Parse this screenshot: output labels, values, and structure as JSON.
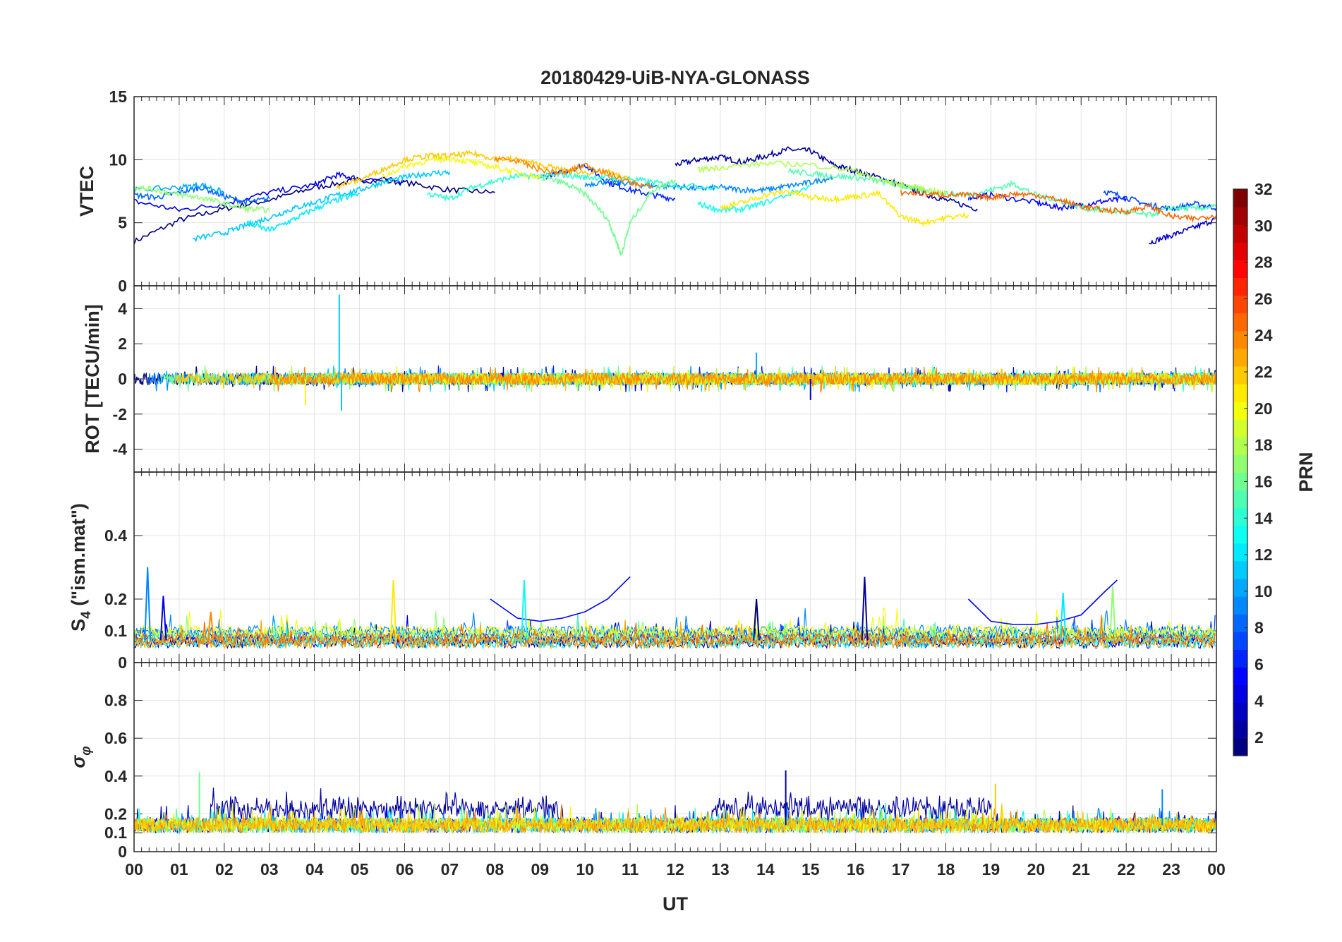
{
  "chart_data": {
    "type": "line",
    "title": "20180429-UiB-NYA-GLONASS",
    "xlabel": "UT",
    "x_ticks": [
      "00",
      "01",
      "02",
      "03",
      "04",
      "05",
      "06",
      "07",
      "08",
      "09",
      "10",
      "11",
      "12",
      "13",
      "14",
      "15",
      "16",
      "17",
      "18",
      "19",
      "20",
      "21",
      "22",
      "23",
      "00"
    ],
    "xlim": [
      0,
      24
    ],
    "grid": true,
    "colorbar": {
      "label": "PRN",
      "colormap": "jet",
      "range": [
        1,
        32
      ],
      "ticks": [
        2,
        4,
        6,
        8,
        10,
        12,
        14,
        16,
        18,
        20,
        22,
        24,
        26,
        28,
        30,
        32
      ]
    },
    "panels": [
      {
        "id": "vtec",
        "ylabel": "VTEC",
        "ylim": [
          0,
          15
        ],
        "yticks": [
          0,
          5,
          10,
          15
        ],
        "series": [
          {
            "prn": 1,
            "x": [
              0,
              1,
              2,
              3,
              4,
              5,
              6,
              7,
              8
            ],
            "y": [
              3.5,
              5.2,
              6.1,
              6.8,
              7.8,
              8.4,
              8.2,
              7.6,
              7.4
            ]
          },
          {
            "prn": 2,
            "x": [
              12,
              12.5,
              13,
              13.5,
              14,
              14.5,
              15,
              15.5,
              16,
              16.5,
              17,
              17.5,
              18,
              18.7
            ],
            "y": [
              9.6,
              10.0,
              10.2,
              9.8,
              10.3,
              10.8,
              10.7,
              9.6,
              9.1,
              8.6,
              8.0,
              7.3,
              6.8,
              6.1
            ]
          },
          {
            "prn": 3,
            "x": [
              22.5,
              23,
              23.5,
              24
            ],
            "y": [
              3.4,
              4.0,
              4.6,
              5.3
            ]
          },
          {
            "prn": 4,
            "x": [
              0,
              1,
              2,
              3,
              4,
              4.5,
              5,
              6
            ],
            "y": [
              6.7,
              6.0,
              6.5,
              7.4,
              8.0,
              8.8,
              8.5,
              8.3
            ]
          },
          {
            "prn": 5,
            "x": [
              18.5,
              19,
              20,
              20.5,
              21,
              21.5,
              22
            ],
            "y": [
              7.0,
              7.2,
              6.6,
              6.2,
              6.4,
              6.7,
              6.9
            ]
          },
          {
            "prn": 6,
            "x": [
              9,
              9.5,
              10,
              10.5,
              11,
              11.5,
              12
            ],
            "y": [
              8.6,
              9.0,
              9.6,
              8.2,
              7.6,
              7.2,
              6.9
            ]
          },
          {
            "prn": 7,
            "x": [
              21.5,
              22,
              22.5,
              23,
              23.5,
              24
            ],
            "y": [
              7.5,
              7.0,
              6.4,
              6.1,
              6.5,
              6.2
            ]
          },
          {
            "prn": 8,
            "x": [
              0,
              0.5,
              1,
              1.5,
              2,
              2.5,
              3
            ],
            "y": [
              7.2,
              7.0,
              7.4,
              7.8,
              7.1,
              6.6,
              6.9
            ]
          },
          {
            "prn": 9,
            "x": [
              10,
              10.5,
              11,
              11.5,
              12,
              12.5,
              13,
              13.5,
              14,
              14.5,
              15,
              15.5
            ],
            "y": [
              8.0,
              8.3,
              8.1,
              7.9,
              7.9,
              7.7,
              7.8,
              7.6,
              7.6,
              7.9,
              8.2,
              8.6
            ]
          },
          {
            "prn": 10,
            "x": [
              0,
              1,
              1.5,
              2
            ],
            "y": [
              7.6,
              7.8,
              8.0,
              7.4
            ]
          },
          {
            "prn": 11,
            "x": [
              1.3,
              2,
              2.5,
              3,
              3.5,
              4,
              4.5,
              5,
              5.5,
              6,
              6.5,
              7
            ],
            "y": [
              3.7,
              4.2,
              4.8,
              5.4,
              6.1,
              6.6,
              7.2,
              7.6,
              8.2,
              8.6,
              8.9,
              9.0
            ]
          },
          {
            "prn": 12,
            "x": [
              2.5,
              3,
              3.5,
              4,
              4.5,
              5
            ],
            "y": [
              5.0,
              4.4,
              5.2,
              6.1,
              6.8,
              7.3
            ]
          },
          {
            "prn": 13,
            "x": [
              12.5,
              13,
              13.5,
              14,
              15
            ],
            "y": [
              6.5,
              6.0,
              6.1,
              6.6,
              7.9
            ]
          },
          {
            "prn": 14,
            "x": [
              6.5,
              7,
              7.5,
              8,
              8.5,
              9,
              9.5,
              10,
              10.5,
              11,
              11.5,
              12,
              13
            ],
            "y": [
              7.3,
              6.9,
              7.8,
              8.3,
              8.7,
              8.7,
              8.8,
              8.6,
              8.6,
              8.5,
              8.2,
              8.0,
              7.8
            ]
          },
          {
            "prn": 15,
            "x": [
              14.5,
              15,
              15.5,
              16,
              16.5,
              17,
              17.5,
              18,
              18.5,
              19,
              19.5,
              20,
              20.5,
              21,
              21.5,
              22,
              22.5,
              23,
              23.5,
              24
            ],
            "y": [
              9.1,
              8.9,
              8.7,
              8.6,
              8.3,
              8.0,
              7.5,
              7.3,
              7.2,
              7.6,
              8.1,
              7.2,
              6.8,
              6.2,
              6.0,
              5.8,
              5.6,
              6.2,
              6.1,
              6.3
            ]
          },
          {
            "prn": 16,
            "x": [
              9,
              9.5,
              10,
              10.5,
              10.7,
              10.8,
              11,
              11.5,
              12
            ],
            "y": [
              8.6,
              8.2,
              7.3,
              5.3,
              3.5,
              2.4,
              5.0,
              7.6,
              8.4
            ]
          },
          {
            "prn": 17,
            "x": [
              0,
              0.5,
              1,
              1.5,
              2,
              2.5,
              3
            ],
            "y": [
              7.8,
              7.6,
              7.2,
              7.0,
              6.5,
              6.1,
              6.0
            ]
          },
          {
            "prn": 18,
            "x": [
              12.5,
              13,
              14,
              15,
              16,
              16.5,
              17,
              17.5,
              18
            ],
            "y": [
              9.2,
              9.4,
              9.7,
              9.6,
              9.1,
              8.4,
              8.0,
              7.7,
              7.3
            ]
          },
          {
            "prn": 20,
            "x": [
              5.5,
              6,
              6.5,
              7,
              7.5,
              8,
              8.5,
              9
            ],
            "y": [
              8.6,
              9.5,
              9.9,
              10.1,
              9.8,
              9.4,
              9.0,
              8.6
            ]
          },
          {
            "prn": 21,
            "x": [
              13,
              13.5,
              14,
              14.5,
              15,
              15.5,
              16,
              16.5,
              17,
              17.5,
              18,
              18.5
            ],
            "y": [
              6.2,
              6.6,
              7.2,
              7.5,
              7.0,
              6.9,
              7.1,
              7.3,
              5.5,
              5.0,
              5.4,
              5.6
            ]
          },
          {
            "prn": 22,
            "x": [
              4.5,
              5,
              5.5,
              6,
              6.5,
              7,
              7.5,
              8,
              8.5,
              9,
              9.5,
              10,
              10.5,
              11
            ],
            "y": [
              7.9,
              8.4,
              9.2,
              10.0,
              10.3,
              10.3,
              10.5,
              10.1,
              10.0,
              9.6,
              9.2,
              9.0,
              9.0,
              8.4
            ]
          },
          {
            "prn": 24,
            "x": [
              8,
              8.5,
              9,
              9.5,
              10,
              10.5,
              11,
              11.5
            ],
            "y": [
              10.1,
              9.9,
              9.2,
              8.9,
              9.6,
              8.9,
              8.2,
              7.8
            ]
          },
          {
            "prn": 25,
            "x": [
              17,
              17.5,
              18,
              18.5,
              19,
              19.5,
              20,
              20.5,
              21,
              21.5,
              22,
              22.5,
              23,
              23.5,
              24
            ],
            "y": [
              7.4,
              7.3,
              7.2,
              7.2,
              7.0,
              7.3,
              7.2,
              6.8,
              6.3,
              6.0,
              5.9,
              6.3,
              5.5,
              5.3,
              5.6
            ]
          }
        ]
      },
      {
        "id": "rot",
        "ylabel": "ROT [TECU/min]",
        "ylim": [
          -5.3,
          5.3
        ],
        "yticks": [
          -4,
          -2,
          0,
          2,
          4
        ],
        "noise_amplitude": 0.35,
        "spikes": [
          {
            "prn": 11,
            "x": 4.55,
            "y": 4.8
          },
          {
            "prn": 11,
            "x": 4.6,
            "y": -1.8
          },
          {
            "prn": 10,
            "x": 13.8,
            "y": 1.5
          },
          {
            "prn": 3,
            "x": 15.0,
            "y": -1.2
          },
          {
            "prn": 20,
            "x": 3.8,
            "y": -1.5
          }
        ]
      },
      {
        "id": "s4",
        "ylabel": "S4 (\"ism.mat\")",
        "ylim": [
          0,
          0.6
        ],
        "yticks": [
          0,
          0.1,
          0.2,
          0.4
        ],
        "spikes": [
          {
            "prn": 9,
            "x": 0.3,
            "y": 0.3
          },
          {
            "prn": 4,
            "x": 0.65,
            "y": 0.21
          },
          {
            "prn": 24,
            "x": 1.7,
            "y": 0.16
          },
          {
            "prn": 21,
            "x": 5.75,
            "y": 0.26
          },
          {
            "prn": 13,
            "x": 8.65,
            "y": 0.26
          },
          {
            "prn": 1,
            "x": 13.8,
            "y": 0.2
          },
          {
            "prn": 2,
            "x": 16.2,
            "y": 0.27
          },
          {
            "prn": 12,
            "x": 20.6,
            "y": 0.22
          },
          {
            "prn": 17,
            "x": 21.7,
            "y": 0.24
          }
        ],
        "trends": [
          {
            "prn": 5,
            "x": [
              7.9,
              8.5,
              9,
              9.5,
              10,
              10.5,
              11
            ],
            "y": [
              0.2,
              0.14,
              0.13,
              0.14,
              0.16,
              0.2,
              0.27
            ]
          },
          {
            "prn": 5,
            "x": [
              18.5,
              19,
              19.5,
              20,
              20.5,
              21,
              21.5,
              21.8
            ],
            "y": [
              0.2,
              0.13,
              0.12,
              0.12,
              0.13,
              0.15,
              0.22,
              0.26
            ]
          }
        ]
      },
      {
        "id": "sigma_phi",
        "ylabel": "σφ",
        "ylim": [
          0,
          1
        ],
        "yticks": [
          0,
          0.1,
          0.2,
          0.4,
          0.6,
          0.8
        ],
        "baseline": 0.14,
        "spikes": [
          {
            "prn": 16,
            "x": 1.45,
            "y": 0.42
          },
          {
            "prn": 2,
            "x": 14.45,
            "y": 0.43
          },
          {
            "prn": 22,
            "x": 19.1,
            "y": 0.36
          },
          {
            "prn": 9,
            "x": 22.8,
            "y": 0.33
          }
        ]
      }
    ]
  }
}
